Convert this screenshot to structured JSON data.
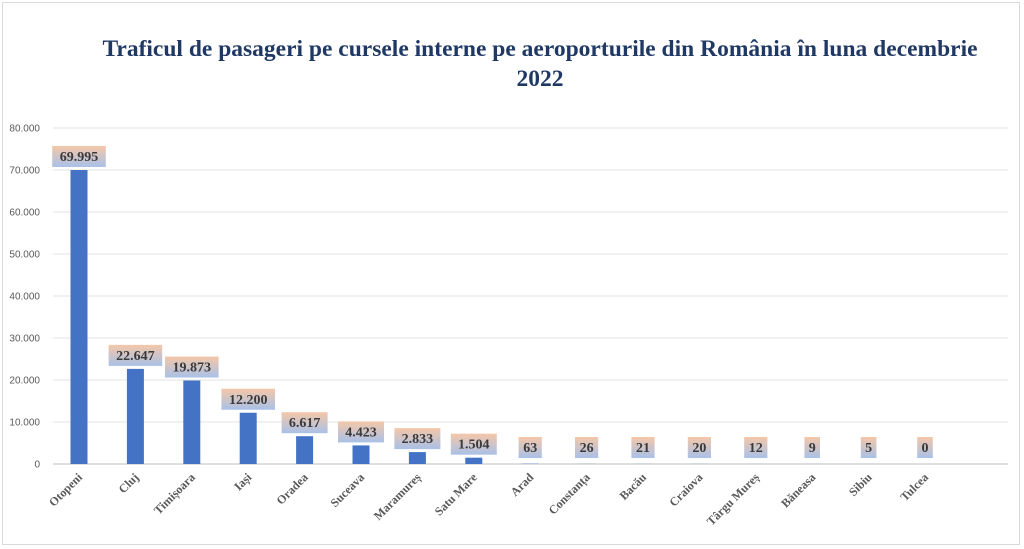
{
  "chart_data": {
    "type": "bar",
    "title": "Traficul de pasageri pe cursele interne pe aeroporturile din România în luna decembrie 2022",
    "xlabel": "",
    "ylabel": "",
    "ylim": [
      0,
      80000
    ],
    "yticks": [
      0,
      10000,
      20000,
      30000,
      40000,
      50000,
      60000,
      70000,
      80000
    ],
    "ytick_labels": [
      "0",
      "10.000",
      "20.000",
      "30.000",
      "40.000",
      "50.000",
      "60.000",
      "70.000",
      "80.000"
    ],
    "grid": true,
    "legend": "none",
    "bar_color": "#4472c4",
    "label_gradient_top": "#f4c7a8",
    "label_gradient_bottom": "#a9c1e8",
    "categories": [
      "Otopeni",
      "Cluj",
      "Timișoara",
      "Iași",
      "Oradea",
      "Suceava",
      "Maramureș",
      "Satu Mare",
      "Arad",
      "Constanța",
      "Bacău",
      "Craiova",
      "Târgu Mureș",
      "Băneasa",
      "Sibiu",
      "Tulcea"
    ],
    "values": [
      69995,
      22647,
      19873,
      12200,
      6617,
      4423,
      2833,
      1504,
      63,
      26,
      21,
      20,
      12,
      9,
      5,
      0
    ],
    "data_labels": [
      "69.995",
      "22.647",
      "19.873",
      "12.200",
      "6.617",
      "4.423",
      "2.833",
      "1.504",
      "63",
      "26",
      "21",
      "20",
      "12",
      "9",
      "5",
      "0"
    ]
  }
}
